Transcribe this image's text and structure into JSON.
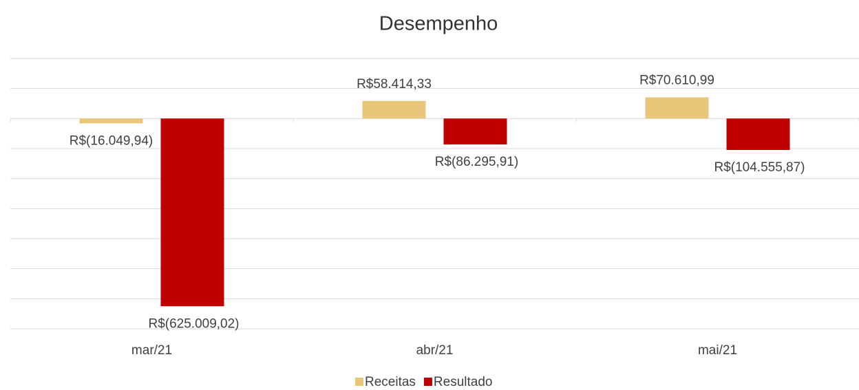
{
  "chart_data": {
    "type": "bar",
    "title": "Desempenho",
    "categories": [
      "mar/21",
      "abr/21",
      "mai/21"
    ],
    "series": [
      {
        "name": "Receitas",
        "color": "#e8c77a",
        "values": [
          -16049.94,
          58414.33,
          70610.99
        ],
        "value_labels": [
          "R$(16.049,94)",
          "R$58.414,33",
          "R$70.610,99"
        ]
      },
      {
        "name": "Resultado",
        "color": "#c00000",
        "values": [
          -625009.02,
          -86295.91,
          -104555.87
        ],
        "value_labels": [
          "R$(625.009,02)",
          "R$(86.295,91)",
          "R$(104.555,87)"
        ]
      }
    ],
    "ylim": [
      -700000,
      200000
    ],
    "yticks": [
      -700000,
      -600000,
      -500000,
      -400000,
      -300000,
      -200000,
      -100000,
      0,
      100000,
      200000
    ],
    "grid": true,
    "legend": "bottom"
  }
}
